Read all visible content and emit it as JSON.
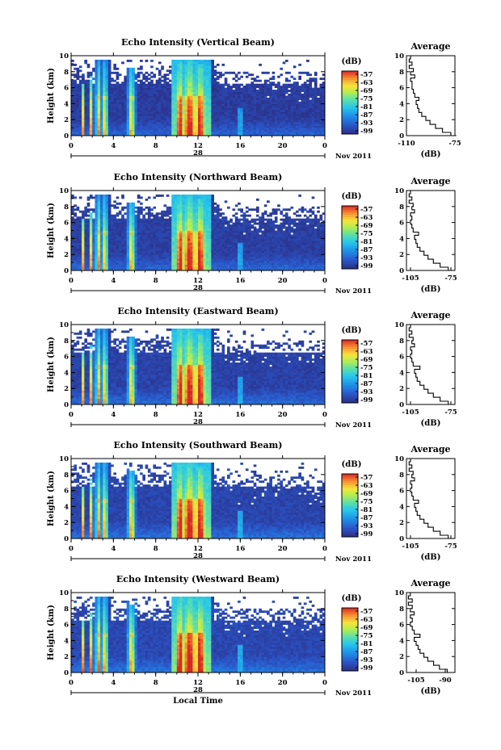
{
  "chart_data": [
    {
      "type": "heatmap",
      "title": "Echo Intensity (Vertical Beam)",
      "ylabel": "Height (km)",
      "yticks": [
        "0",
        "2",
        "4",
        "6",
        "8",
        "10"
      ],
      "xticks": [
        "0",
        "4",
        "8",
        "12",
        "16",
        "20",
        "0"
      ],
      "date_label": "28",
      "month_label": "Nov 2011",
      "colorbar": {
        "unit": "(dB)",
        "ticks": [
          "-57",
          "-63",
          "-69",
          "-75",
          "-81",
          "-87",
          "-93",
          "-99"
        ]
      },
      "average": {
        "title": "Average",
        "xlabel": "(dB)",
        "xticks": [
          "-110",
          "-75"
        ],
        "yticks": [
          "0",
          "2",
          "4",
          "6",
          "8",
          "10"
        ],
        "xlim": [
          -110,
          -75
        ],
        "profile": [
          [
            -74,
            0
          ],
          [
            -78,
            0.4
          ],
          [
            -84,
            0.9
          ],
          [
            -89,
            1.4
          ],
          [
            -93,
            1.9
          ],
          [
            -96,
            2.4
          ],
          [
            -99,
            2.9
          ],
          [
            -101,
            3.4
          ],
          [
            -102,
            3.9
          ],
          [
            -103,
            4.4
          ],
          [
            -101,
            4.8
          ],
          [
            -104,
            5.3
          ],
          [
            -105,
            5.8
          ],
          [
            -106,
            6.3
          ],
          [
            -106,
            6.8
          ],
          [
            -107,
            7.2
          ],
          [
            -104,
            7.6
          ],
          [
            -107,
            8.0
          ],
          [
            -105,
            8.4
          ],
          [
            -108,
            8.8
          ],
          [
            -106,
            9.2
          ],
          [
            -108,
            9.6
          ],
          [
            -107,
            10
          ]
        ]
      }
    },
    {
      "type": "heatmap",
      "title": "Echo Intensity (Northward Beam)",
      "ylabel": "Height (km)",
      "yticks": [
        "0",
        "2",
        "4",
        "6",
        "8",
        "10"
      ],
      "xticks": [
        "0",
        "4",
        "8",
        "12",
        "16",
        "20",
        "0"
      ],
      "date_label": "28",
      "month_label": "Nov 2011",
      "colorbar": {
        "unit": "(dB)",
        "ticks": [
          "-57",
          "-63",
          "-69",
          "-75",
          "-81",
          "-87",
          "-93",
          "-99"
        ]
      },
      "average": {
        "title": "Average",
        "xlabel": "(dB)",
        "xticks": [
          "-105",
          "-75"
        ],
        "yticks": [
          "0",
          "2",
          "4",
          "6",
          "8",
          "10"
        ],
        "xlim": [
          -108,
          -72
        ],
        "profile": [
          [
            -73,
            0
          ],
          [
            -77,
            0.4
          ],
          [
            -83,
            0.9
          ],
          [
            -88,
            1.4
          ],
          [
            -92,
            1.9
          ],
          [
            -95,
            2.4
          ],
          [
            -98,
            2.9
          ],
          [
            -100,
            3.4
          ],
          [
            -101,
            3.9
          ],
          [
            -102,
            4.4
          ],
          [
            -99,
            4.8
          ],
          [
            -103,
            5.3
          ],
          [
            -104,
            5.8
          ],
          [
            -105,
            6.3
          ],
          [
            -104,
            6.8
          ],
          [
            -105,
            7.2
          ],
          [
            -102,
            7.6
          ],
          [
            -104,
            8.0
          ],
          [
            -103,
            8.4
          ],
          [
            -106,
            8.8
          ],
          [
            -104,
            9.2
          ],
          [
            -106,
            9.6
          ],
          [
            -105,
            10
          ]
        ]
      }
    },
    {
      "type": "heatmap",
      "title": "Echo Intensity (Eastward Beam)",
      "ylabel": "Height (km)",
      "yticks": [
        "0",
        "2",
        "4",
        "6",
        "8",
        "10"
      ],
      "xticks": [
        "0",
        "4",
        "8",
        "12",
        "16",
        "20",
        "0"
      ],
      "date_label": "28",
      "month_label": "Nov 2011",
      "colorbar": {
        "unit": "(dB)",
        "ticks": [
          "-57",
          "-63",
          "-69",
          "-75",
          "-81",
          "-87",
          "-93",
          "-99"
        ]
      },
      "average": {
        "title": "Average",
        "xlabel": "(dB)",
        "xticks": [
          "-105",
          "-75"
        ],
        "yticks": [
          "0",
          "2",
          "4",
          "6",
          "8",
          "10"
        ],
        "xlim": [
          -108,
          -72
        ],
        "profile": [
          [
            -73,
            0
          ],
          [
            -77,
            0.4
          ],
          [
            -83,
            0.9
          ],
          [
            -88,
            1.4
          ],
          [
            -92,
            1.9
          ],
          [
            -95,
            2.4
          ],
          [
            -98,
            2.9
          ],
          [
            -100,
            3.4
          ],
          [
            -101,
            3.9
          ],
          [
            -102,
            4.4
          ],
          [
            -98,
            4.8
          ],
          [
            -103,
            5.3
          ],
          [
            -104,
            5.8
          ],
          [
            -105,
            6.3
          ],
          [
            -104,
            6.8
          ],
          [
            -105,
            7.2
          ],
          [
            -102,
            7.6
          ],
          [
            -104,
            8.0
          ],
          [
            -103,
            8.4
          ],
          [
            -106,
            8.8
          ],
          [
            -104,
            9.2
          ],
          [
            -106,
            9.6
          ],
          [
            -105,
            10
          ]
        ]
      }
    },
    {
      "type": "heatmap",
      "title": "Echo Intensity (Southward Beam)",
      "ylabel": "Height (km)",
      "yticks": [
        "0",
        "2",
        "4",
        "6",
        "8",
        "10"
      ],
      "xticks": [
        "0",
        "4",
        "8",
        "12",
        "16",
        "20",
        "0"
      ],
      "date_label": "28",
      "month_label": "Nov 2011",
      "colorbar": {
        "unit": "(dB)",
        "ticks": [
          "-57",
          "-63",
          "-69",
          "-75",
          "-81",
          "-87",
          "-93",
          "-99"
        ]
      },
      "average": {
        "title": "Average",
        "xlabel": "(dB)",
        "xticks": [
          "-105",
          "-75"
        ],
        "yticks": [
          "0",
          "2",
          "4",
          "6",
          "8",
          "10"
        ],
        "xlim": [
          -108,
          -72
        ],
        "profile": [
          [
            -73,
            0
          ],
          [
            -77,
            0.4
          ],
          [
            -83,
            0.9
          ],
          [
            -88,
            1.4
          ],
          [
            -92,
            1.9
          ],
          [
            -95,
            2.4
          ],
          [
            -98,
            2.9
          ],
          [
            -100,
            3.4
          ],
          [
            -101,
            3.9
          ],
          [
            -102,
            4.4
          ],
          [
            -99,
            4.8
          ],
          [
            -103,
            5.3
          ],
          [
            -104,
            5.8
          ],
          [
            -105,
            6.3
          ],
          [
            -104,
            6.8
          ],
          [
            -105,
            7.2
          ],
          [
            -102,
            7.6
          ],
          [
            -104,
            8.0
          ],
          [
            -103,
            8.4
          ],
          [
            -106,
            8.8
          ],
          [
            -104,
            9.2
          ],
          [
            -106,
            9.6
          ],
          [
            -105,
            10
          ]
        ]
      }
    },
    {
      "type": "heatmap",
      "title": "Echo Intensity (Westward Beam)",
      "ylabel": "Height (km)",
      "yticks": [
        "0",
        "2",
        "4",
        "6",
        "8",
        "10"
      ],
      "xticks": [
        "0",
        "4",
        "8",
        "12",
        "16",
        "20",
        "0"
      ],
      "date_label": "28",
      "month_label": "Nov 2011",
      "xlabel": "Local Time",
      "colorbar": {
        "unit": "(dB)",
        "ticks": [
          "-57",
          "-63",
          "-69",
          "-75",
          "-81",
          "-87",
          "-93",
          "-99"
        ]
      },
      "average": {
        "title": "Average",
        "xlabel": "(dB)",
        "xticks": [
          "-105",
          "-90"
        ],
        "yticks": [
          "0",
          "2",
          "4",
          "6",
          "8",
          "10"
        ],
        "xlim": [
          -110,
          -85
        ],
        "profile": [
          [
            -86,
            0
          ],
          [
            -89,
            0.4
          ],
          [
            -93,
            0.9
          ],
          [
            -96,
            1.4
          ],
          [
            -99,
            1.9
          ],
          [
            -101,
            2.4
          ],
          [
            -103,
            2.9
          ],
          [
            -104,
            3.4
          ],
          [
            -105,
            3.9
          ],
          [
            -106,
            4.4
          ],
          [
            -103,
            4.8
          ],
          [
            -106,
            5.3
          ],
          [
            -107,
            5.8
          ],
          [
            -108,
            6.3
          ],
          [
            -107,
            6.8
          ],
          [
            -108,
            7.2
          ],
          [
            -106,
            7.6
          ],
          [
            -108,
            8.0
          ],
          [
            -107,
            8.4
          ],
          [
            -109,
            8.8
          ],
          [
            -107,
            9.2
          ],
          [
            -109,
            9.6
          ],
          [
            -108,
            10
          ]
        ]
      }
    }
  ]
}
